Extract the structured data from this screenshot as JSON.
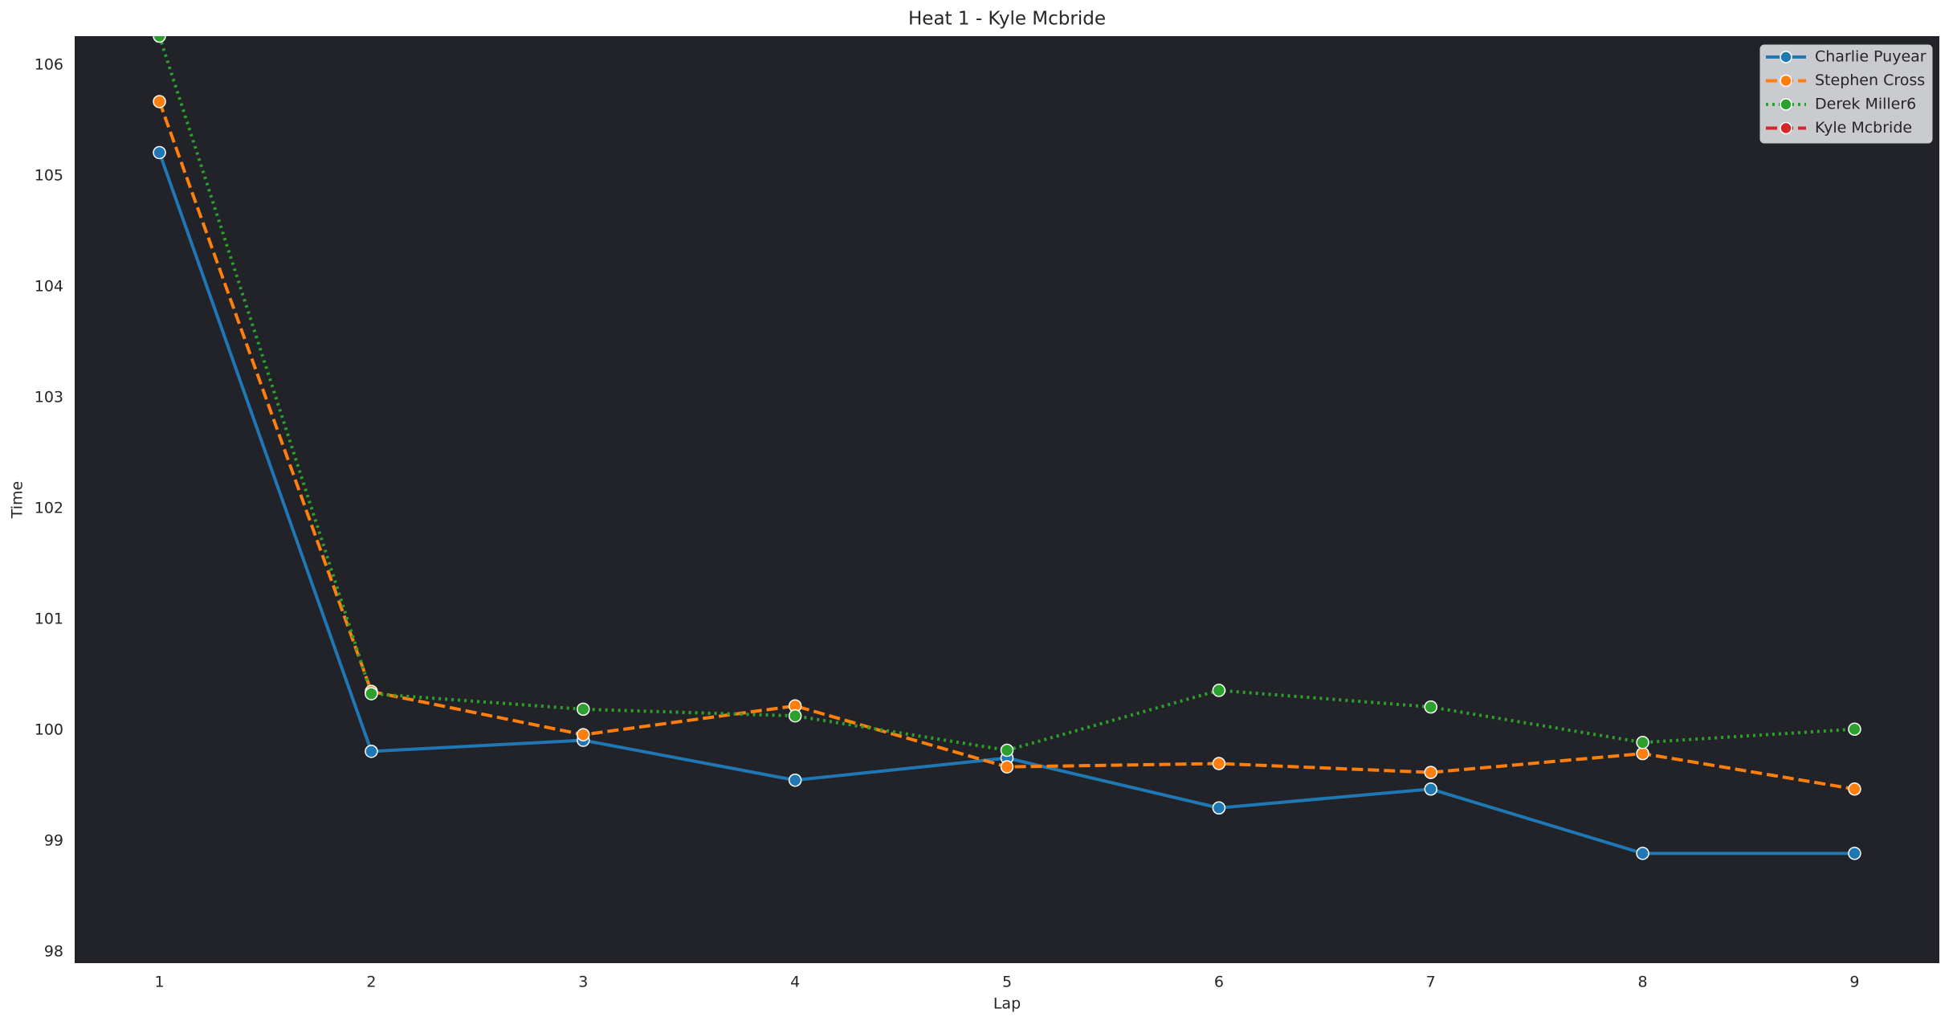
{
  "chart_data": {
    "type": "line",
    "title": "Heat 1 - Kyle Mcbride",
    "x_label": "Lap",
    "y_label": "Time",
    "x": [
      1,
      2,
      3,
      4,
      5,
      6,
      7,
      8,
      9
    ],
    "series": [
      {
        "name": "Charlie Puyear",
        "color": "#1f77b4",
        "linestyle": "solid",
        "values": [
          105.21,
          99.81,
          99.91,
          99.55,
          99.75,
          99.3,
          99.47,
          98.89,
          98.89
        ]
      },
      {
        "name": "Stephen Cross",
        "color": "#ff7f0e",
        "linestyle": "dashed",
        "values": [
          105.67,
          100.35,
          99.96,
          100.22,
          99.67,
          99.7,
          99.62,
          99.79,
          99.47
        ]
      },
      {
        "name": "Derek Miller6",
        "color": "#2ca02c",
        "linestyle": "dotted",
        "values": [
          106.26,
          100.33,
          100.19,
          100.13,
          99.82,
          100.36,
          100.21,
          99.89,
          100.01
        ]
      },
      {
        "name": "Kyle Mcbride",
        "color": "#d62728",
        "linestyle": "dashed",
        "values": [
          null,
          null,
          null,
          null,
          null,
          null,
          null,
          null,
          null
        ]
      }
    ],
    "xlim": [
      0.6,
      9.4
    ],
    "xticks": [
      1,
      2,
      3,
      4,
      5,
      6,
      7,
      8,
      9
    ],
    "ylim": [
      97.9,
      106.26
    ],
    "yticks": [
      98,
      99,
      100,
      101,
      102,
      103,
      104,
      105,
      106
    ],
    "grid": false,
    "legend": "upper right"
  }
}
